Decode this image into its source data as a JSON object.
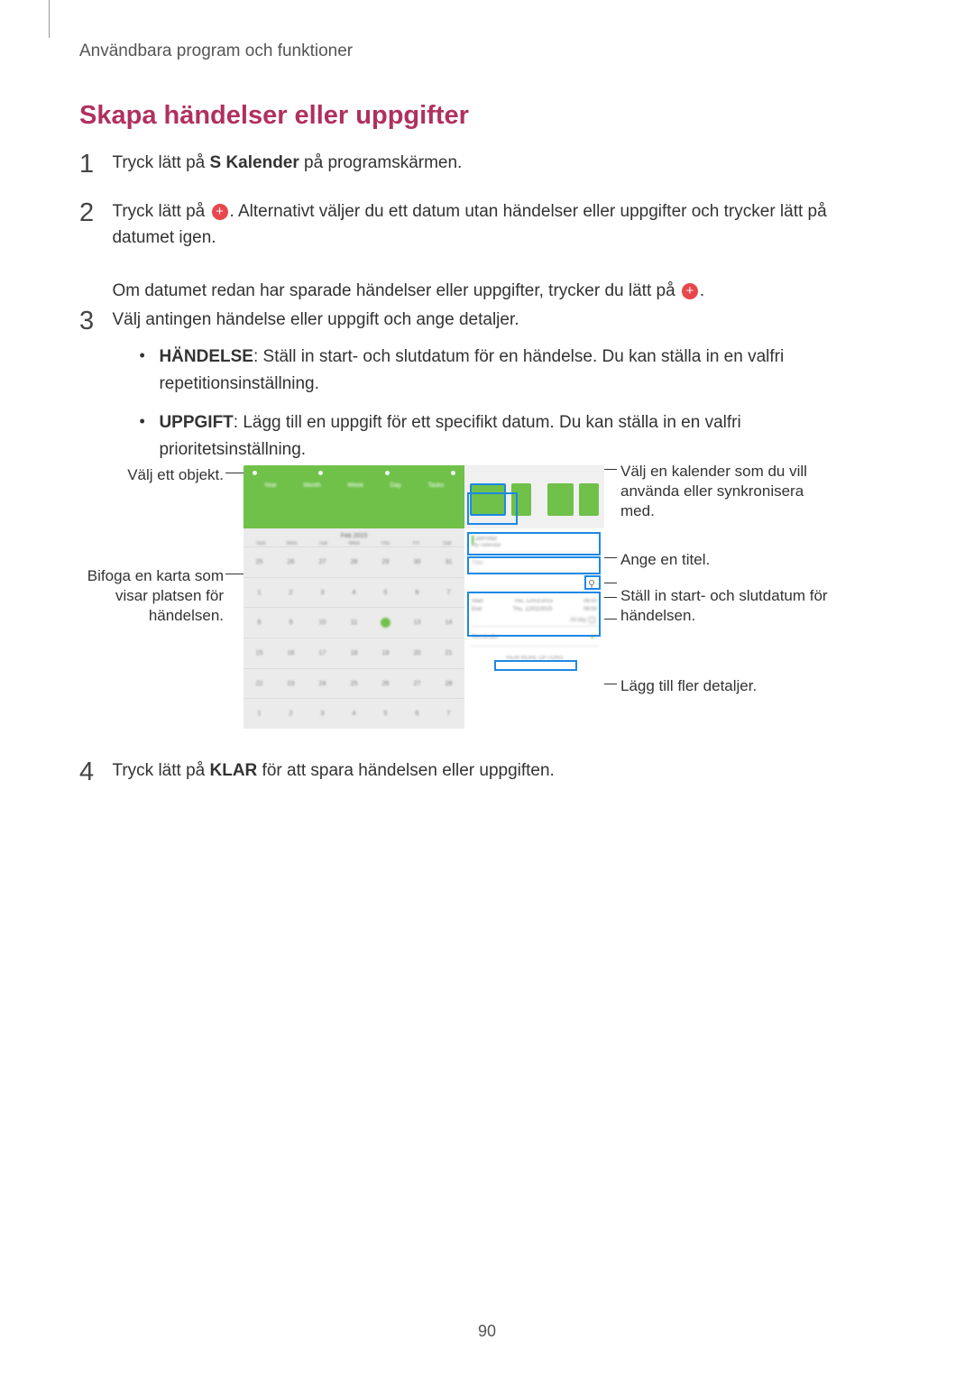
{
  "header": "Användbara program och funktioner",
  "title": "Skapa händelser eller uppgifter",
  "steps": {
    "s1": {
      "num": "1",
      "pre": "Tryck lätt på ",
      "bold": "S Kalender",
      "post": " på programskärmen."
    },
    "s2": {
      "num": "2",
      "line1_pre": "Tryck lätt på ",
      "line1_post": ". Alternativt väljer du ett datum utan händelser eller uppgifter och trycker lätt på datumet igen.",
      "line2_pre": "Om datumet redan har sparade händelser eller uppgifter, trycker du lätt på ",
      "line2_post": "."
    },
    "s3": {
      "num": "3",
      "intro": "Välj antingen händelse eller uppgift och ange detaljer.",
      "b1_bold": "HÄNDELSE",
      "b1_text": ": Ställ in start- och slutdatum för en händelse. Du kan ställa in en valfri repetitionsinställning.",
      "b2_bold": "UPPGIFT",
      "b2_text": ": Lägg till en uppgift för ett specifikt datum. Du kan ställa in en valfri prioritetsinställning."
    },
    "s4": {
      "num": "4",
      "pre": "Tryck lätt på ",
      "bold": "KLAR",
      "post": " för att spara händelsen eller uppgiften."
    }
  },
  "callouts": {
    "left1": "Välj ett objekt.",
    "left2": "Bifoga en karta som visar platsen för händelsen.",
    "right1": "Välj en kalender som du vill använda eller synkronisera med.",
    "right2": "Ange en titel.",
    "right3": "Ställ in start- och slutdatum för händelsen.",
    "right4": "Lägg till fler detaljer."
  },
  "screenshot": {
    "month": "Feb 2015",
    "calendar_label": "Calendar",
    "mycal": "My calendar",
    "title_hint": "Title",
    "location_hint": "Location",
    "start": "Start",
    "end": "End",
    "date_sample": "Thu, 12/02/2015",
    "time_sample": "09:00",
    "allday": "All day",
    "reminder": "Reminder",
    "more": "VIEW MORE OPTIONS",
    "dow": [
      "Sun",
      "Mon",
      "Tue",
      "Wed",
      "Thu",
      "Fri",
      "Sat"
    ],
    "weeks": [
      [
        "25",
        "26",
        "27",
        "28",
        "29",
        "30",
        "31"
      ],
      [
        "1",
        "2",
        "3",
        "4",
        "5",
        "6",
        "7"
      ],
      [
        "8",
        "9",
        "10",
        "11",
        "today",
        "13",
        "14"
      ],
      [
        "15",
        "16",
        "17",
        "18",
        "19",
        "20",
        "21"
      ],
      [
        "22",
        "23",
        "24",
        "25",
        "26",
        "27",
        "28"
      ],
      [
        "1",
        "2",
        "3",
        "4",
        "5",
        "6",
        "7"
      ]
    ]
  },
  "page_number": "90",
  "colors": {
    "title": "#b03060",
    "accent": "#6fc14a",
    "highlight": "#1e88e5",
    "plus_bg": "#e8474c"
  }
}
